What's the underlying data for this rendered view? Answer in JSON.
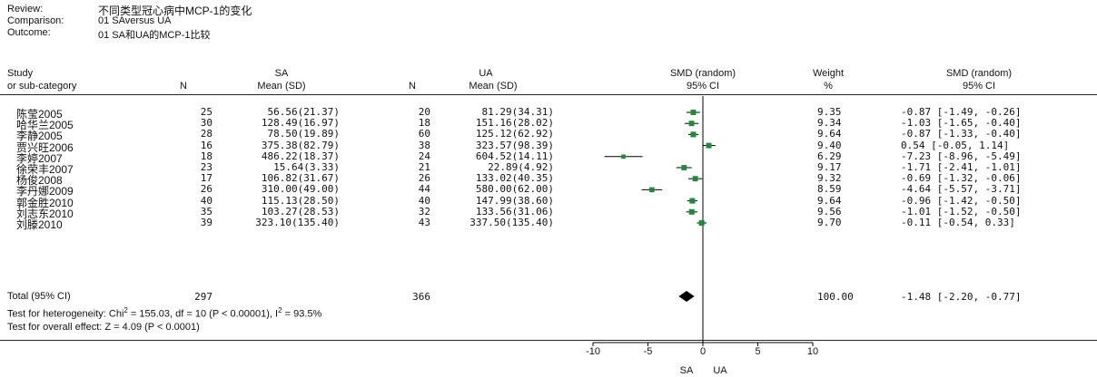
{
  "header": {
    "review_label": "Review:",
    "review_value": "不同类型冠心病中MCP-1的变化",
    "comparison_label": "Comparison:",
    "comparison_value": "01 SAversus UA",
    "outcome_label": "Outcome:",
    "outcome_value": "01 SA和UA的MCP-1比较"
  },
  "columns": {
    "study": "Study",
    "subcategory": "or sub-category",
    "group1": "SA",
    "group2": "UA",
    "n1": "N",
    "n2": "N",
    "mean1": "Mean (SD)",
    "mean2": "Mean (SD)",
    "smd_random": "SMD (random)",
    "ci95": "95% CI",
    "weight": "Weight",
    "pct": "%",
    "smd_random2": "SMD (random)",
    "ci95_2": "95% CI"
  },
  "studies": [
    {
      "name": "陈莹2005",
      "n1": "25",
      "mean1": "56.56(21.37)",
      "n2": "20",
      "mean2": "81.29(34.31)",
      "weight": "9.35",
      "ci_text": "-0.87 [-1.49, -0.26]"
    },
    {
      "name": "哈华兰2005",
      "n1": "30",
      "mean1": "128.49(16.97)",
      "n2": "18",
      "mean2": "151.16(28.02)",
      "weight": "9.34",
      "ci_text": "-1.03 [-1.65, -0.40]"
    },
    {
      "name": "李静2005",
      "n1": "28",
      "mean1": "78.50(19.89)",
      "n2": "60",
      "mean2": "125.12(62.92)",
      "weight": "9.64",
      "ci_text": "-0.87 [-1.33, -0.40]"
    },
    {
      "name": "贾兴旺2006",
      "n1": "16",
      "mean1": "375.38(82.79)",
      "n2": "38",
      "mean2": "323.57(98.39)",
      "weight": "9.40",
      "ci_text": "0.54 [-0.05, 1.14]"
    },
    {
      "name": "李婷2007",
      "n1": "18",
      "mean1": "486.22(18.37)",
      "n2": "24",
      "mean2": "604.52(14.11)",
      "weight": "6.29",
      "ci_text": "-7.23 [-8.96, -5.49]"
    },
    {
      "name": "徐荣丰2007",
      "n1": "23",
      "mean1": "15.64(3.33)",
      "n2": "21",
      "mean2": "22.89(4.92)",
      "weight": "9.17",
      "ci_text": "-1.71 [-2.41, -1.01]"
    },
    {
      "name": "杨俊2008",
      "n1": "17",
      "mean1": "106.82(31.67)",
      "n2": "26",
      "mean2": "133.02(40.35)",
      "weight": "9.32",
      "ci_text": "-0.69 [-1.32, -0.06]"
    },
    {
      "name": "李丹娜2009",
      "n1": "26",
      "mean1": "310.00(49.00)",
      "n2": "44",
      "mean2": "580.00(62.00)",
      "weight": "8.59",
      "ci_text": "-4.64 [-5.57, -3.71]"
    },
    {
      "name": "郭金胜2010",
      "n1": "40",
      "mean1": "115.13(28.50)",
      "n2": "40",
      "mean2": "147.99(38.60)",
      "weight": "9.64",
      "ci_text": "-0.96 [-1.42, -0.50]"
    },
    {
      "name": "刘志东2010",
      "n1": "35",
      "mean1": "103.27(28.53)",
      "n2": "32",
      "mean2": "133.56(31.06)",
      "weight": "9.56",
      "ci_text": "-1.01 [-1.52, -0.50]"
    },
    {
      "name": "刘滕2010",
      "n1": "39",
      "mean1": "323.10(135.40)",
      "n2": "43",
      "mean2": "337.50(135.40)",
      "weight": "9.70",
      "ci_text": "-0.11 [-0.54, 0.33]"
    }
  ],
  "total": {
    "label": "Total (95% CI)",
    "n1": "297",
    "n2": "366",
    "weight": "100.00",
    "ci_text": "-1.48 [-2.20, -0.77]"
  },
  "heterogeneity_prefix": "Test for heterogeneity: Chi",
  "heterogeneity_chi_sup": "2",
  "heterogeneity_mid": " = 155.03, df = 10 (P < 0.00001), I",
  "heterogeneity_i_sup": "2",
  "heterogeneity_suffix": " = 93.5%",
  "overall_effect": "Test for overall effect: Z = 4.09 (P < 0.0001)",
  "axis": {
    "ticks": [
      "-10",
      "-5",
      "0",
      "5",
      "10"
    ],
    "label_left": "SA",
    "label_right": "UA"
  },
  "colors": {
    "marker": "#1f8a3a",
    "diamond": "#000000",
    "line": "#000000"
  },
  "chart_data": {
    "type": "forest",
    "xlim": [
      -10,
      10
    ],
    "ticks": [
      -10,
      -5,
      0,
      5,
      10
    ],
    "studies": [
      {
        "name": "陈莹2005",
        "smd": -0.87,
        "lo": -1.49,
        "hi": -0.26,
        "weight": 9.35
      },
      {
        "name": "哈华兰2005",
        "smd": -1.03,
        "lo": -1.65,
        "hi": -0.4,
        "weight": 9.34
      },
      {
        "name": "李静2005",
        "smd": -0.87,
        "lo": -1.33,
        "hi": -0.4,
        "weight": 9.64
      },
      {
        "name": "贾兴旺2006",
        "smd": 0.54,
        "lo": -0.05,
        "hi": 1.14,
        "weight": 9.4
      },
      {
        "name": "李婷2007",
        "smd": -7.23,
        "lo": -8.96,
        "hi": -5.49,
        "weight": 6.29
      },
      {
        "name": "徐荣丰2007",
        "smd": -1.71,
        "lo": -2.41,
        "hi": -1.01,
        "weight": 9.17
      },
      {
        "name": "杨俊2008",
        "smd": -0.69,
        "lo": -1.32,
        "hi": -0.06,
        "weight": 9.32
      },
      {
        "name": "李丹娜2009",
        "smd": -4.64,
        "lo": -5.57,
        "hi": -3.71,
        "weight": 8.59
      },
      {
        "name": "郭金胜2010",
        "smd": -0.96,
        "lo": -1.42,
        "hi": -0.5,
        "weight": 9.64
      },
      {
        "name": "刘志东2010",
        "smd": -1.01,
        "lo": -1.52,
        "hi": -0.5,
        "weight": 9.56
      },
      {
        "name": "刘滕2010",
        "smd": -0.11,
        "lo": -0.54,
        "hi": 0.33,
        "weight": 9.7
      }
    ],
    "total": {
      "smd": -1.48,
      "lo": -2.2,
      "hi": -0.77,
      "weight": 100.0
    }
  }
}
